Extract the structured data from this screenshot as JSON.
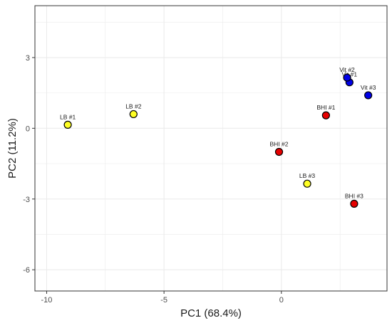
{
  "chart_data": {
    "type": "scatter",
    "title": "",
    "xlabel": "PC1 (68.4%)",
    "ylabel": "PC2 (11.2%)",
    "xlim": [
      -10.5,
      4.5
    ],
    "ylim": [
      -6.9,
      5.2
    ],
    "x_ticks": [
      -10,
      -5,
      0
    ],
    "x_tick_labels": [
      "-10",
      "-5",
      "0"
    ],
    "y_ticks": [
      -6,
      -3,
      0,
      3
    ],
    "y_tick_labels": [
      "-6",
      "-3",
      "0",
      "3"
    ],
    "grid": true,
    "legend": "none",
    "colors": {
      "LB": "#ffff24",
      "BHI": "#e60000",
      "Vit": "#0000e6",
      "outline": "#000000",
      "grid": "#ebebeb",
      "panel_border": "#333333"
    },
    "points": [
      {
        "label": "LB #1",
        "group": "LB",
        "x": -9.1,
        "y": 0.15
      },
      {
        "label": "LB #2",
        "group": "LB",
        "x": -6.3,
        "y": 0.6
      },
      {
        "label": "LB #3",
        "group": "LB",
        "x": 1.1,
        "y": -2.35
      },
      {
        "label": "BHI #1",
        "group": "BHI",
        "x": 1.9,
        "y": 0.55
      },
      {
        "label": "BHI #2",
        "group": "BHI",
        "x": -0.1,
        "y": -1.0
      },
      {
        "label": "BHI #3",
        "group": "BHI",
        "x": 3.1,
        "y": -3.2
      },
      {
        "label": "Vit #1",
        "group": "Vit",
        "x": 2.9,
        "y": 1.95
      },
      {
        "label": "Vit #2",
        "group": "Vit",
        "x": 2.8,
        "y": 2.15
      },
      {
        "label": "Vit #3",
        "group": "Vit",
        "x": 3.7,
        "y": 1.4
      }
    ]
  }
}
